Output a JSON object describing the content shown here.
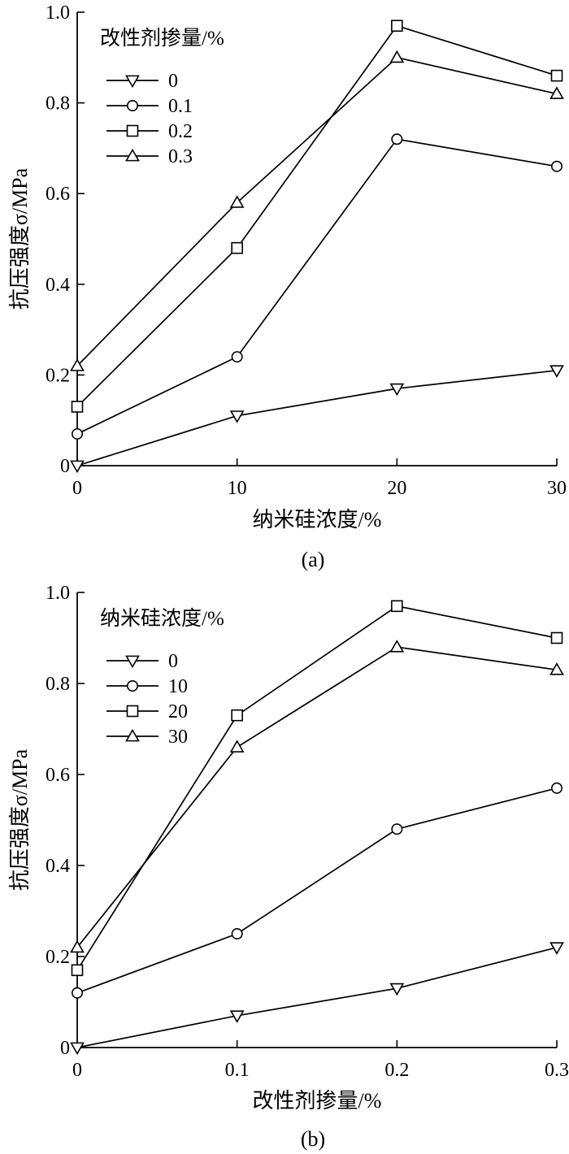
{
  "chart_data": [
    {
      "type": "line",
      "caption": "(a)",
      "xlabel": "纳米硅浓度/%",
      "ylabel": "抗压强度σ/MPa",
      "x": [
        0,
        10,
        20,
        30
      ],
      "x_tick_labels": [
        "0",
        "10",
        "20",
        "30"
      ],
      "xlim": [
        0,
        30
      ],
      "ylim": [
        0,
        1.0
      ],
      "y_ticks": [
        0,
        0.2,
        0.4,
        0.6,
        0.8,
        1.0
      ],
      "y_tick_labels": [
        "0",
        "0.2",
        "0.4",
        "0.6",
        "0.8",
        "1.0"
      ],
      "grid": false,
      "legend_title": "改性剂掺量/%",
      "legend_position": "top-left",
      "series": [
        {
          "name": "0",
          "marker": "triangle-down",
          "values": [
            0.0,
            0.11,
            0.17,
            0.21
          ]
        },
        {
          "name": "0.1",
          "marker": "circle",
          "values": [
            0.07,
            0.24,
            0.72,
            0.66
          ]
        },
        {
          "name": "0.2",
          "marker": "square",
          "values": [
            0.13,
            0.48,
            0.97,
            0.86
          ]
        },
        {
          "name": "0.3",
          "marker": "triangle-up",
          "values": [
            0.22,
            0.58,
            0.9,
            0.82
          ]
        }
      ]
    },
    {
      "type": "line",
      "caption": "(b)",
      "xlabel": "改性剂掺量/%",
      "ylabel": "抗压强度σ/MPa",
      "x": [
        0,
        0.1,
        0.2,
        0.3
      ],
      "x_tick_labels": [
        "0",
        "0.1",
        "0.2",
        "0.3"
      ],
      "xlim": [
        0,
        0.3
      ],
      "ylim": [
        0,
        1.0
      ],
      "y_ticks": [
        0,
        0.2,
        0.4,
        0.6,
        0.8,
        1.0
      ],
      "y_tick_labels": [
        "0",
        "0.2",
        "0.4",
        "0.6",
        "0.8",
        "1.0"
      ],
      "grid": false,
      "legend_title": "纳米硅浓度/%",
      "legend_position": "top-left",
      "series": [
        {
          "name": "0",
          "marker": "triangle-down",
          "values": [
            0.0,
            0.07,
            0.13,
            0.22
          ]
        },
        {
          "name": "10",
          "marker": "circle",
          "values": [
            0.12,
            0.25,
            0.48,
            0.57
          ]
        },
        {
          "name": "20",
          "marker": "square",
          "values": [
            0.17,
            0.73,
            0.97,
            0.9
          ]
        },
        {
          "name": "30",
          "marker": "triangle-up",
          "values": [
            0.22,
            0.66,
            0.88,
            0.83
          ]
        }
      ]
    }
  ]
}
